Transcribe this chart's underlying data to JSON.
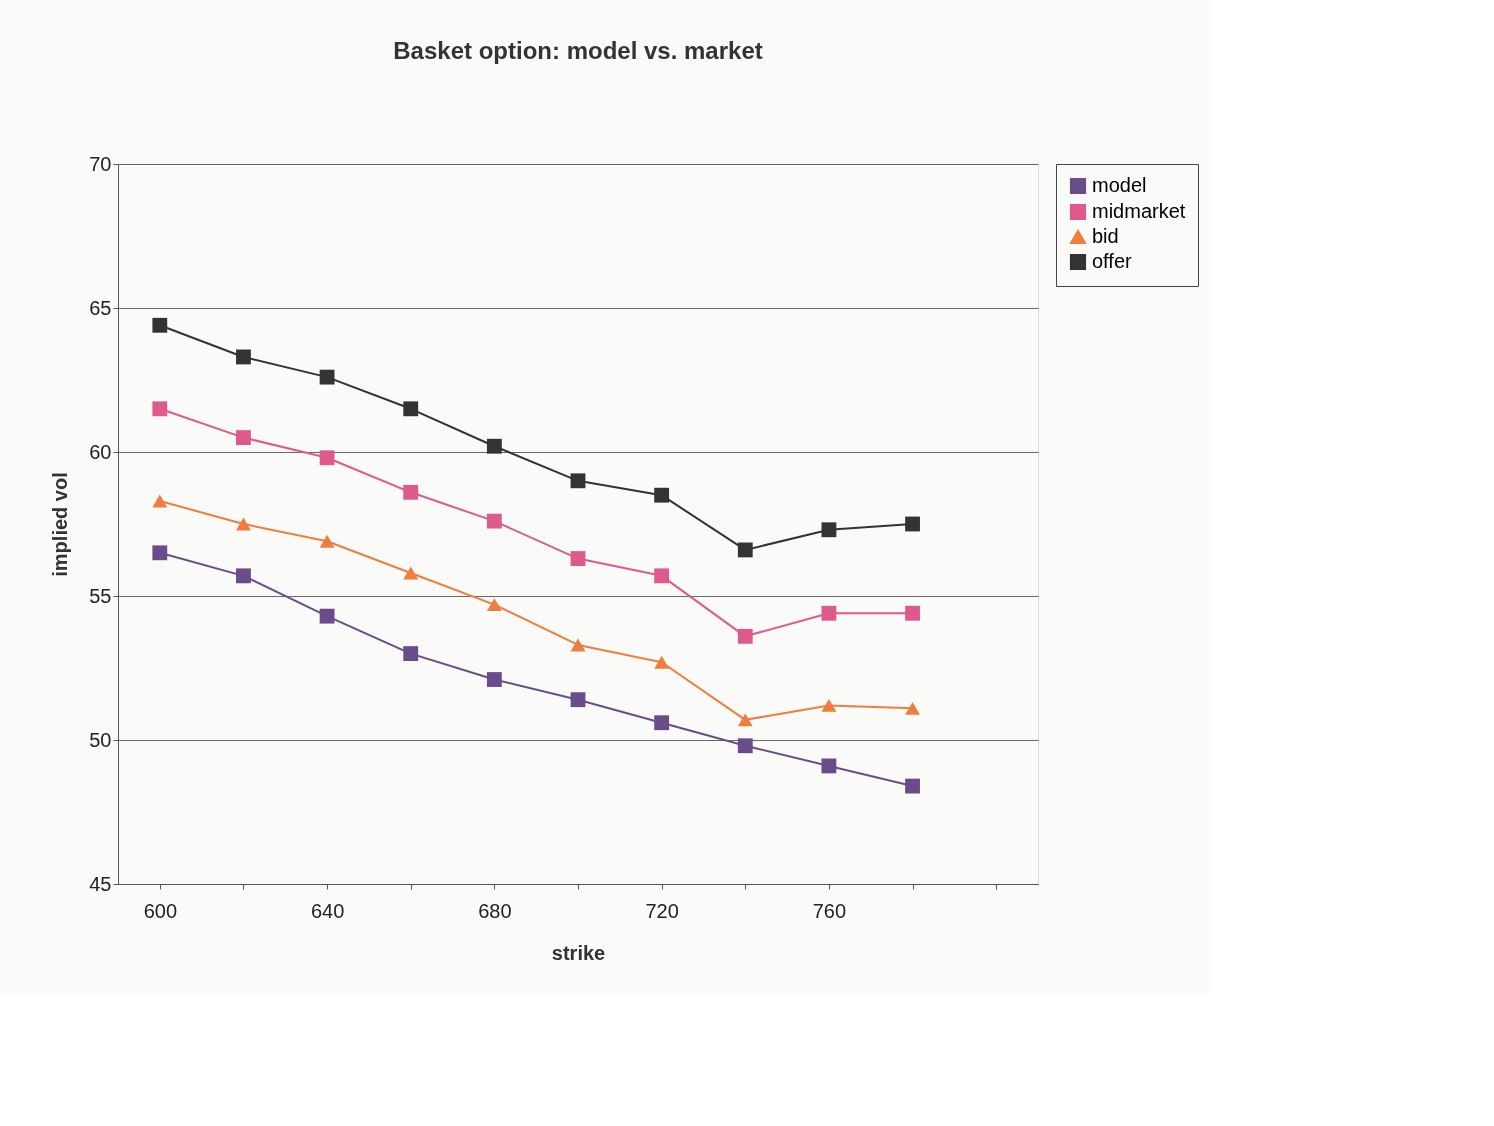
{
  "chart_data": {
    "type": "line",
    "title": "Basket option: model vs. market",
    "xlabel": "strike",
    "ylabel": "implied vol",
    "categories": [
      "600",
      null,
      "640",
      null,
      "680",
      null,
      "720",
      null,
      "760",
      null,
      null
    ],
    "series": [
      {
        "name": "model",
        "color": "#6b4c8a",
        "marker": "square",
        "values": [
          56.5,
          55.7,
          54.3,
          53.0,
          52.1,
          51.4,
          50.6,
          49.8,
          49.1,
          48.4,
          null
        ]
      },
      {
        "name": "midmarket",
        "color": "#de5a8c",
        "marker": "square",
        "values": [
          61.5,
          60.5,
          59.8,
          58.6,
          57.6,
          56.3,
          55.7,
          53.6,
          54.4,
          54.4,
          null
        ]
      },
      {
        "name": "bid",
        "color": "#f07c3e",
        "marker": "triangle",
        "values": [
          58.3,
          57.5,
          56.9,
          55.8,
          54.7,
          53.3,
          52.7,
          50.7,
          51.2,
          51.1,
          null
        ]
      },
      {
        "name": "offer",
        "color": "#333333",
        "marker": "square",
        "values": [
          64.4,
          63.3,
          62.6,
          61.5,
          60.2,
          59.0,
          58.5,
          56.6,
          57.3,
          57.5,
          null
        ]
      }
    ],
    "ylim": [
      45,
      70
    ],
    "yticks": [
      45,
      50,
      55,
      60,
      65,
      70
    ],
    "grid": "y",
    "legend": "right",
    "line_style": "solid"
  }
}
